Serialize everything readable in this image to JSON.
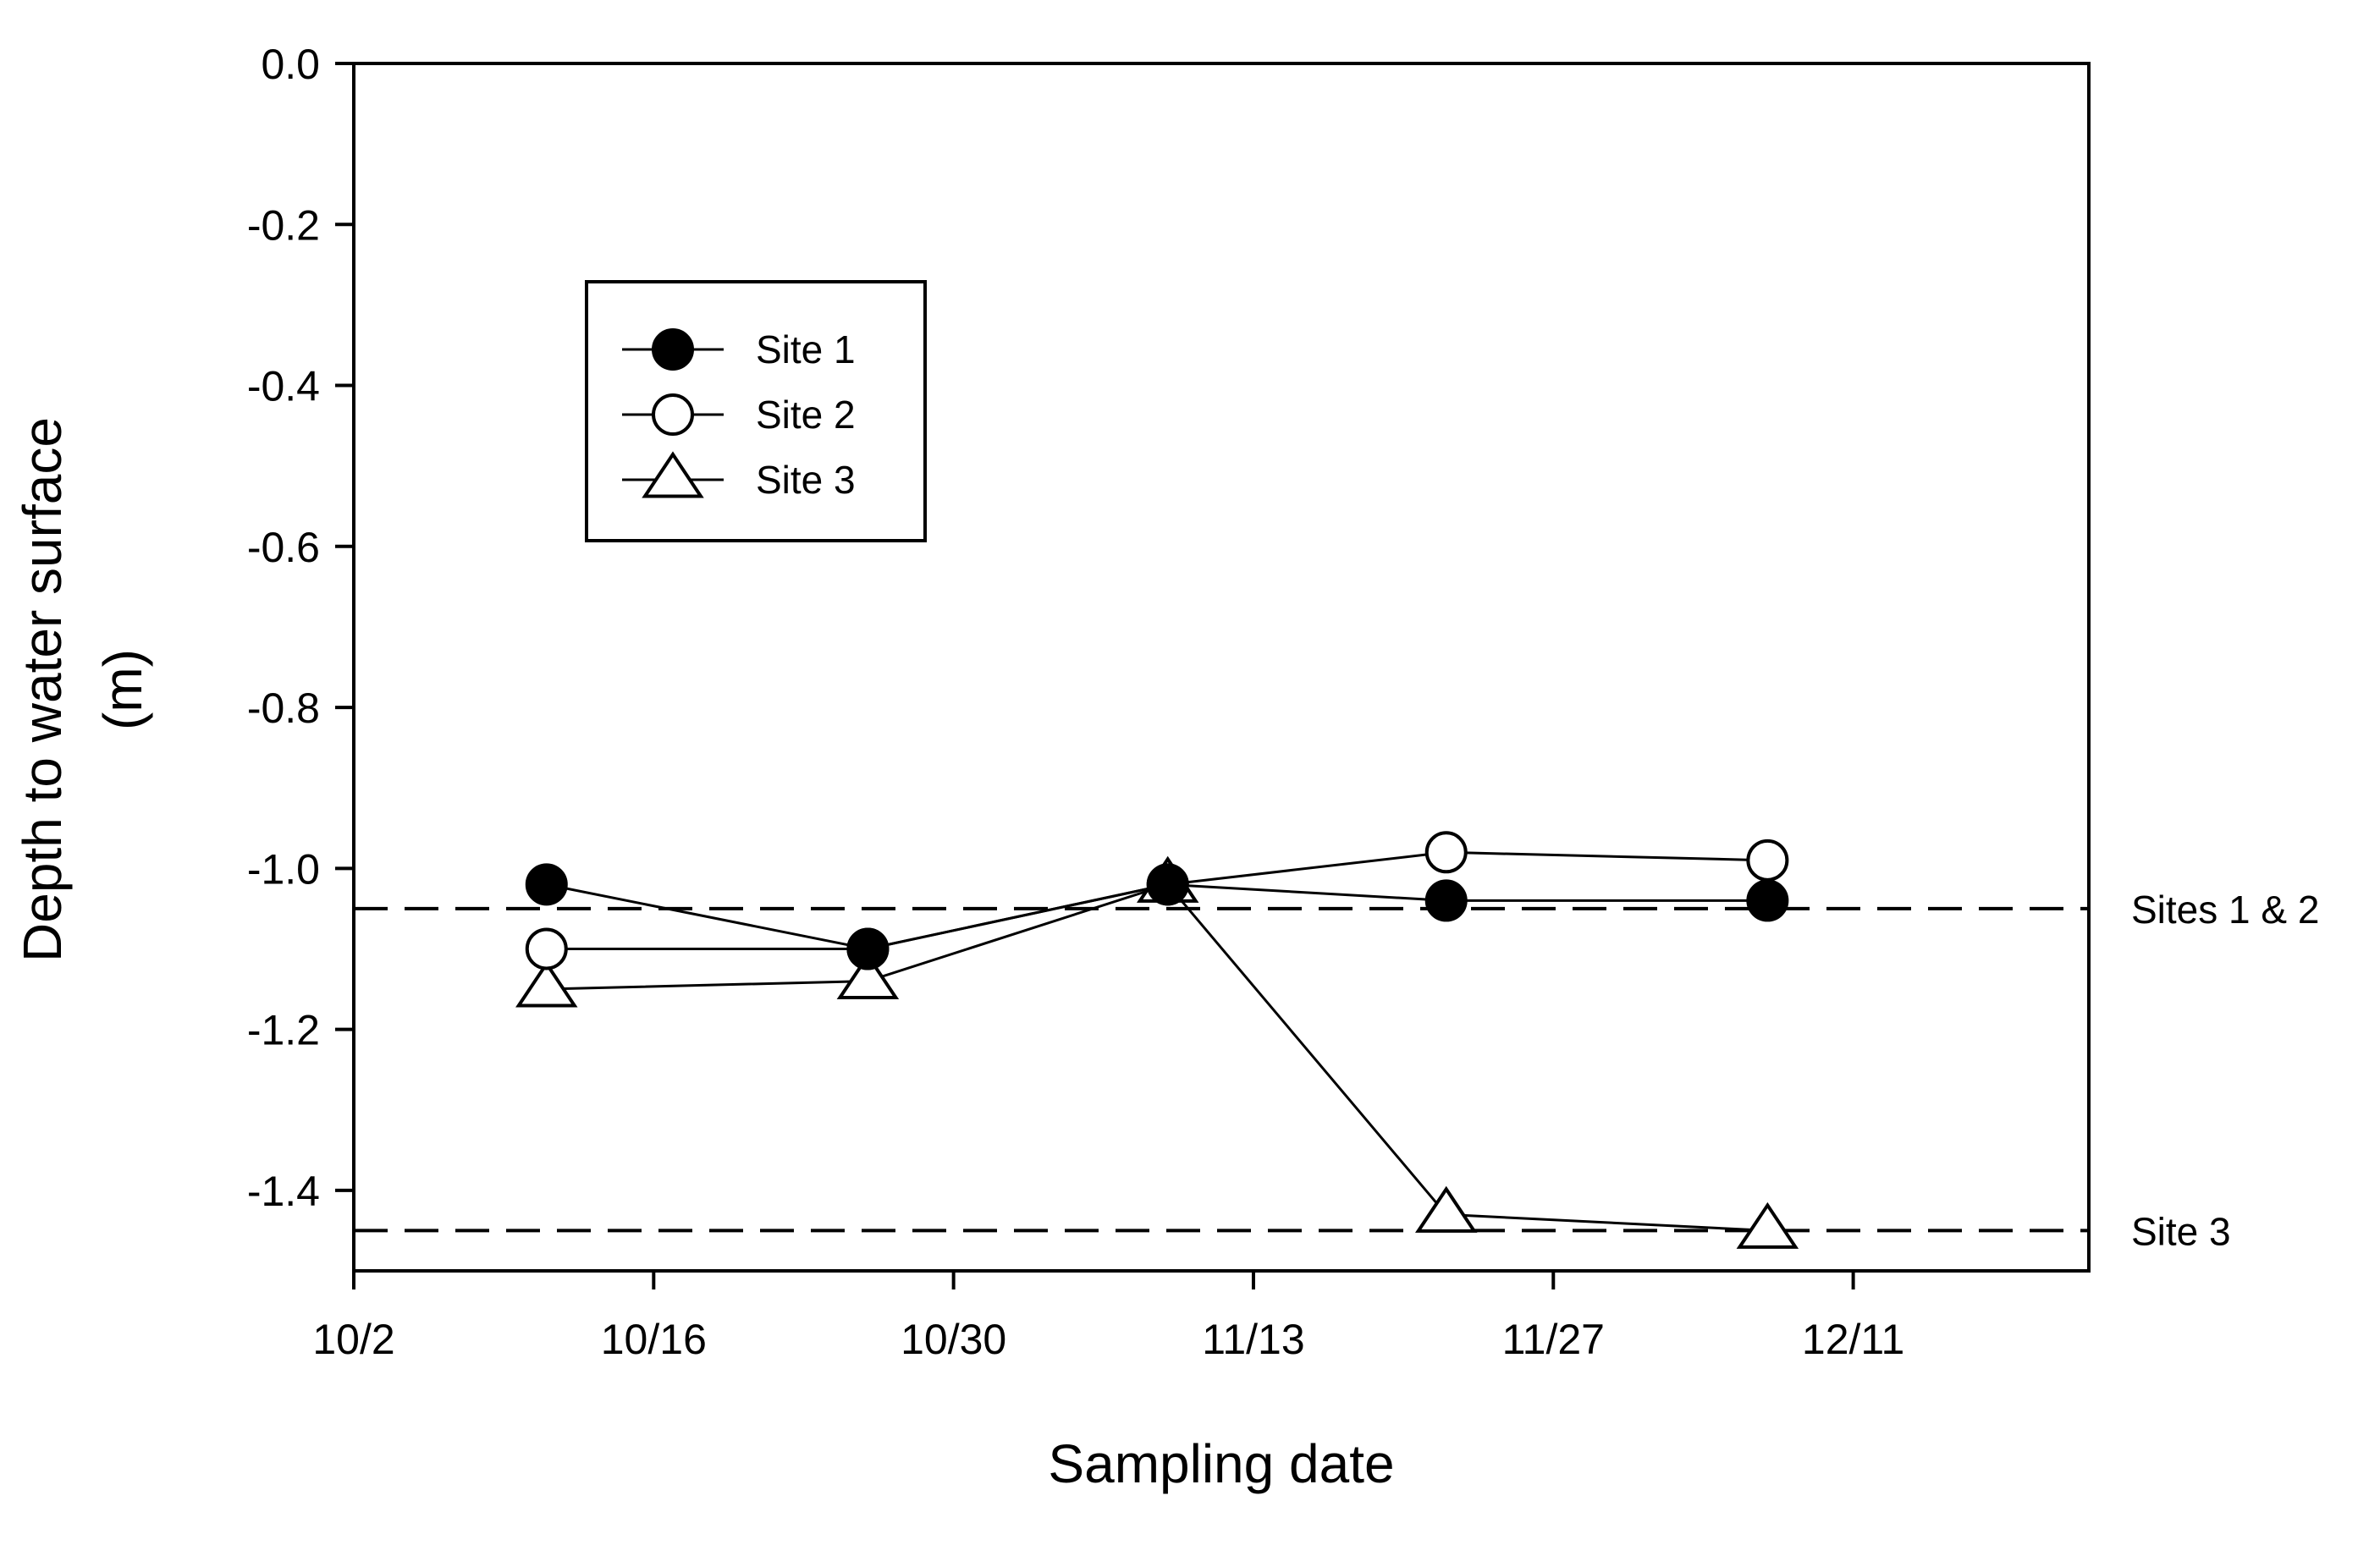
{
  "chart_data": {
    "type": "line",
    "title": "",
    "xlabel": "Sampling date",
    "ylabel_line1": "Depth to water surface",
    "ylabel_line2": "(m)",
    "x_ticks": [
      {
        "day": 0,
        "label": "10/2"
      },
      {
        "day": 14,
        "label": "10/16"
      },
      {
        "day": 28,
        "label": "10/30"
      },
      {
        "day": 42,
        "label": "11/13"
      },
      {
        "day": 56,
        "label": "11/27"
      },
      {
        "day": 70,
        "label": "12/11"
      }
    ],
    "xlim": [
      0,
      81
    ],
    "ylim": [
      -1.5,
      0.0
    ],
    "y_ticks": [
      {
        "value": 0.0,
        "label": "0.0"
      },
      {
        "value": -0.2,
        "label": "-0.2"
      },
      {
        "value": -0.4,
        "label": "-0.4"
      },
      {
        "value": -0.6,
        "label": "-0.6"
      },
      {
        "value": -0.8,
        "label": "-0.8"
      },
      {
        "value": -1.0,
        "label": "-1.0"
      },
      {
        "value": -1.2,
        "label": "-1.2"
      },
      {
        "value": -1.4,
        "label": "-1.4"
      }
    ],
    "series": [
      {
        "name": "Site 1",
        "marker": "filled-circle",
        "x": [
          9,
          24,
          38,
          51,
          66
        ],
        "y": [
          -1.02,
          -1.1,
          -1.02,
          -1.04,
          -1.04
        ]
      },
      {
        "name": "Site 2",
        "marker": "open-circle",
        "x": [
          9,
          24,
          38,
          51,
          66
        ],
        "y": [
          -1.1,
          -1.1,
          -1.02,
          -0.98,
          -0.99
        ]
      },
      {
        "name": "Site 3",
        "marker": "open-triangle",
        "x": [
          9,
          24,
          38,
          51,
          66
        ],
        "y": [
          -1.15,
          -1.14,
          -1.02,
          -1.43,
          -1.45
        ]
      }
    ],
    "reference_lines": [
      {
        "y": -1.05,
        "label": "Sites 1 & 2",
        "style": "dashed"
      },
      {
        "y": -1.45,
        "label": "Site 3",
        "style": "dashed"
      }
    ],
    "legend": {
      "placement": "top-left",
      "entries": [
        {
          "label": "Site 1",
          "marker": "filled-circle"
        },
        {
          "label": "Site 2",
          "marker": "open-circle"
        },
        {
          "label": "Site 3",
          "marker": "open-triangle"
        }
      ]
    }
  }
}
